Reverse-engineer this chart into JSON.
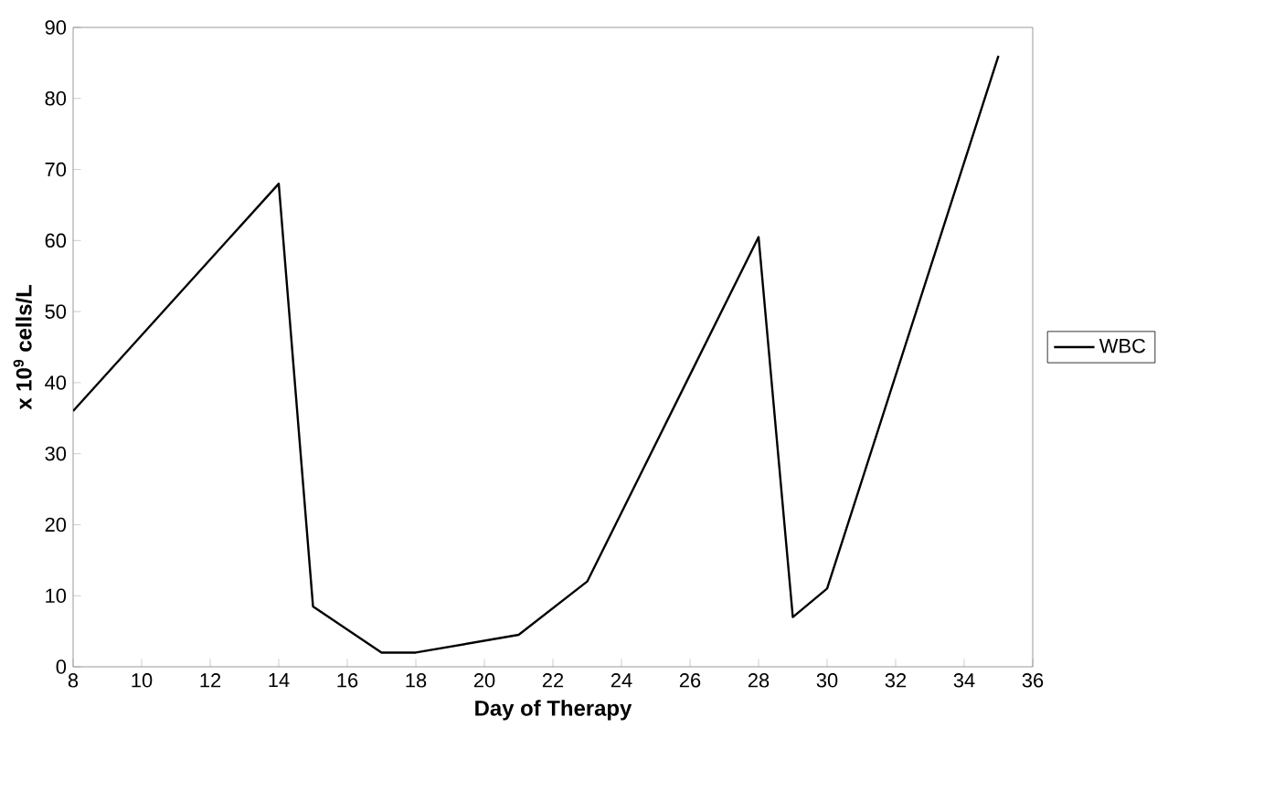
{
  "chart_data": {
    "type": "line",
    "xlabel": "Day of Therapy",
    "ylabel": "x 10$^{9}$ cells/L",
    "x": [
      8,
      14,
      15,
      17,
      18,
      21,
      23,
      28,
      29,
      30,
      35
    ],
    "series": [
      {
        "name": "WBC",
        "color": "#000000",
        "values": [
          36,
          68,
          8.5,
          2,
          2,
          4.5,
          12,
          60.5,
          7,
          11,
          86
        ]
      }
    ],
    "xlim": [
      8,
      36
    ],
    "ylim": [
      0,
      90
    ],
    "xticks": [
      8,
      10,
      12,
      14,
      16,
      18,
      20,
      22,
      24,
      26,
      28,
      30,
      32,
      34,
      36
    ],
    "yticks": [
      0,
      10,
      20,
      30,
      40,
      50,
      60,
      70,
      80,
      90
    ],
    "grid": false,
    "legend": "right",
    "marker": "none",
    "line_style": "solid"
  }
}
